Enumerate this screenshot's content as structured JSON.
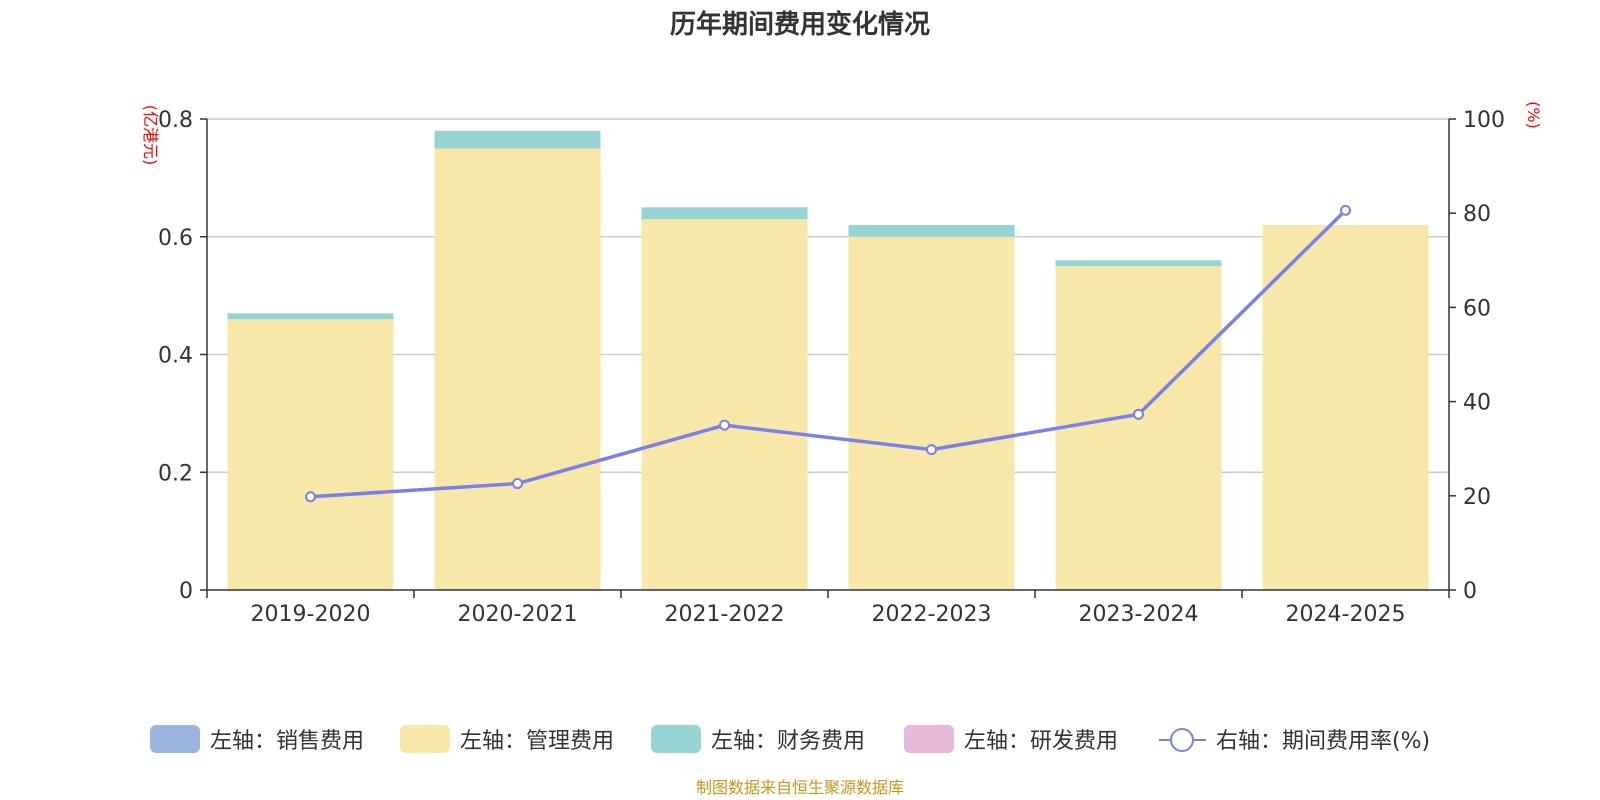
{
  "chart_data": {
    "type": "bar",
    "title": "历年期间费用变化情况",
    "categories": [
      "2019-2020",
      "2020-2021",
      "2021-2022",
      "2022-2023",
      "2023-2024",
      "2024-2025"
    ],
    "left_axis": {
      "unit": "(亿港元)",
      "ylim": [
        0,
        0.8
      ],
      "ticks": [
        "0",
        "0.2",
        "0.4",
        "0.6",
        "0.8"
      ],
      "tick_values": [
        0,
        0.2,
        0.4,
        0.6,
        0.8
      ]
    },
    "right_axis": {
      "unit": "(%)",
      "ylim": [
        0,
        100
      ],
      "ticks": [
        "0",
        "20",
        "40",
        "60",
        "80",
        "100"
      ],
      "tick_values": [
        0,
        20,
        40,
        60,
        80,
        100
      ]
    },
    "series": [
      {
        "name": "左轴：销售费用",
        "type": "bar",
        "axis": "left",
        "color": "#9bb5e0",
        "values": [
          0,
          0,
          0,
          0,
          0,
          0
        ]
      },
      {
        "name": "左轴：管理费用",
        "type": "bar",
        "axis": "left",
        "color": "#f7e7a8",
        "values": [
          0.46,
          0.75,
          0.63,
          0.6,
          0.55,
          0.62
        ]
      },
      {
        "name": "左轴：财务费用",
        "type": "bar",
        "axis": "left",
        "color": "#96d3d3",
        "values": [
          0.01,
          0.03,
          0.02,
          0.02,
          0.01,
          0
        ]
      },
      {
        "name": "左轴：研发费用",
        "type": "bar",
        "axis": "left",
        "color": "#e7b8da",
        "values": [
          0,
          0,
          0,
          0,
          0,
          0
        ]
      },
      {
        "name": "右轴：期间费用率(%)",
        "type": "line",
        "axis": "right",
        "color": "#7b7fe8",
        "values": [
          19.8,
          22.6,
          35.0,
          29.8,
          37.3,
          80.6
        ]
      }
    ],
    "grid": true,
    "legend_position": "bottom",
    "stacked": true
  },
  "source_note": "制图数据来自恒生聚源数据库"
}
